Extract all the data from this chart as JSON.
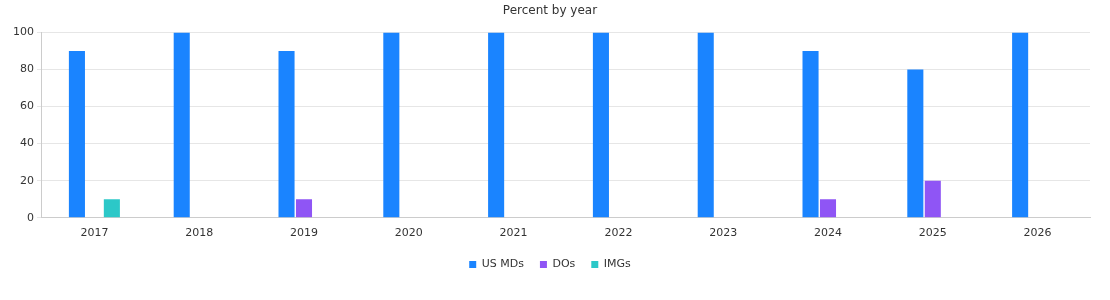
{
  "chart_data": {
    "type": "bar",
    "title": "Percent by year",
    "categories": [
      "2017",
      "2018",
      "2019",
      "2020",
      "2021",
      "2022",
      "2023",
      "2024",
      "2025",
      "2026"
    ],
    "series": [
      {
        "name": "US MDs",
        "color": "#1a84ff",
        "values": [
          90,
          100,
          90,
          100,
          100,
          100,
          100,
          90,
          80,
          100
        ]
      },
      {
        "name": "DOs",
        "color": "#8f55f5",
        "values": [
          0,
          0,
          10,
          0,
          0,
          0,
          0,
          10,
          20,
          0
        ]
      },
      {
        "name": "IMGs",
        "color": "#2cc8c8",
        "values": [
          10,
          0,
          0,
          0,
          0,
          0,
          0,
          0,
          0,
          0
        ]
      }
    ],
    "ylim": [
      0,
      100
    ],
    "yticks": [
      0,
      20,
      40,
      60,
      80,
      100
    ],
    "grid": "y",
    "legend": "bottom"
  }
}
